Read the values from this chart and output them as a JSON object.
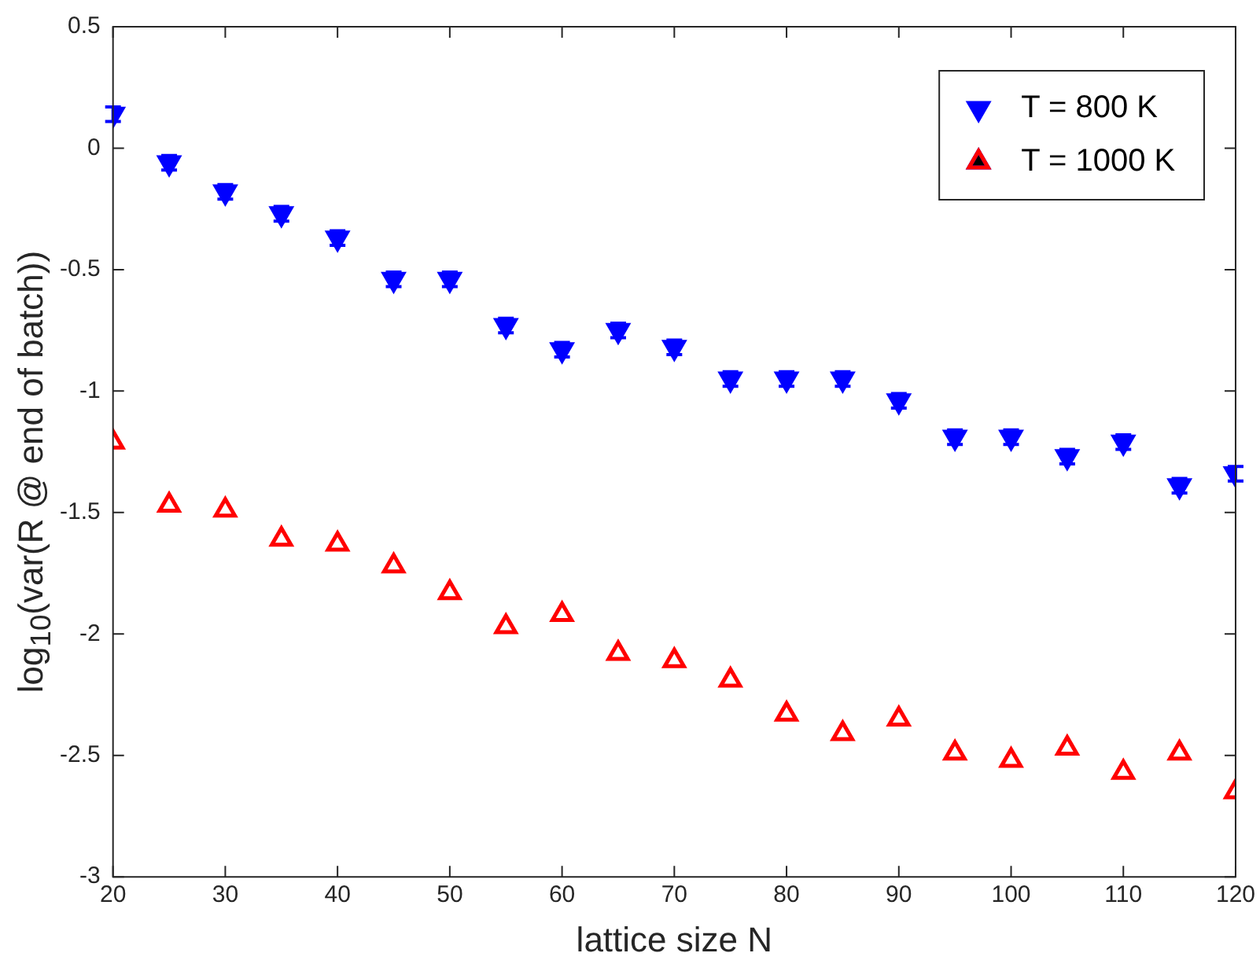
{
  "chart_data": {
    "type": "scatter",
    "xlabel": "lattice size N",
    "ylabel": "log$_{10}$(var(R @ end of batch))",
    "x": [
      20,
      25,
      30,
      35,
      40,
      45,
      50,
      55,
      60,
      65,
      70,
      75,
      80,
      85,
      90,
      95,
      100,
      105,
      110,
      115,
      120
    ],
    "xlim": [
      20,
      120
    ],
    "xticks": [
      20,
      30,
      40,
      50,
      60,
      70,
      80,
      90,
      100,
      110,
      120
    ],
    "ylim": [
      -3,
      0.5
    ],
    "yticks": [
      -3,
      -2.5,
      -2,
      -1.5,
      -1,
      -0.5,
      0,
      0.5
    ],
    "grid": false,
    "legend": "top right",
    "marker": "triangle",
    "series": [
      {
        "name": "T = 800 K",
        "color": "#0000ff",
        "values": [
          0.14,
          -0.06,
          -0.18,
          -0.27,
          -0.37,
          -0.54,
          -0.54,
          -0.73,
          -0.83,
          -0.75,
          -0.82,
          -0.95,
          -0.95,
          -0.95,
          -1.04,
          -1.19,
          -1.19,
          -1.27,
          -1.21,
          -1.39,
          -1.34
        ],
        "errors": [
          0.03,
          0.03,
          0.03,
          0.03,
          0.03,
          0.03,
          0.03,
          0.03,
          0.03,
          0.03,
          0.03,
          0.03,
          0.03,
          0.03,
          0.03,
          0.03,
          0.03,
          0.03,
          0.03,
          0.03,
          0.03
        ]
      },
      {
        "name": "T = 1000 K",
        "color": "#ff0000",
        "values": [
          -1.21,
          -1.47,
          -1.49,
          -1.61,
          -1.63,
          -1.72,
          -1.83,
          -1.97,
          -1.92,
          -2.08,
          -2.11,
          -2.19,
          -2.33,
          -2.41,
          -2.35,
          -2.49,
          -2.52,
          -2.47,
          -2.57,
          -2.49,
          -2.65
        ]
      }
    ]
  }
}
